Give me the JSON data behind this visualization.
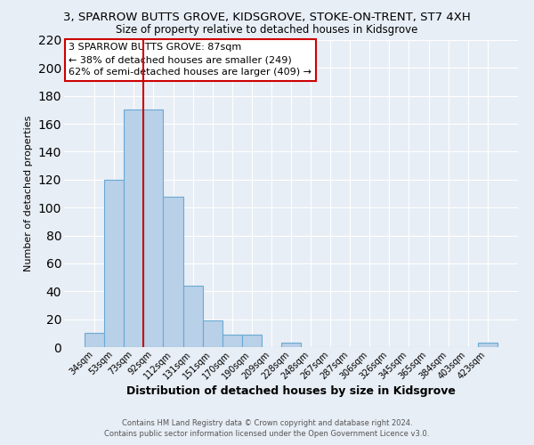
{
  "title": "3, SPARROW BUTTS GROVE, KIDSGROVE, STOKE-ON-TRENT, ST7 4XH",
  "subtitle": "Size of property relative to detached houses in Kidsgrove",
  "xlabel": "Distribution of detached houses by size in Kidsgrove",
  "ylabel": "Number of detached properties",
  "bar_labels": [
    "34sqm",
    "53sqm",
    "73sqm",
    "92sqm",
    "112sqm",
    "131sqm",
    "151sqm",
    "170sqm",
    "190sqm",
    "209sqm",
    "228sqm",
    "248sqm",
    "267sqm",
    "287sqm",
    "306sqm",
    "326sqm",
    "345sqm",
    "365sqm",
    "384sqm",
    "403sqm",
    "423sqm"
  ],
  "bar_values": [
    10,
    120,
    170,
    170,
    108,
    44,
    19,
    9,
    9,
    0,
    3,
    0,
    0,
    0,
    0,
    0,
    0,
    0,
    0,
    0,
    3
  ],
  "bar_color": "#b8d0e8",
  "bar_edge_color": "#6aaad4",
  "background_color": "#e8eef5",
  "grid_color": "#ffffff",
  "red_line_x": 2.5,
  "ylim": [
    0,
    220
  ],
  "yticks": [
    0,
    20,
    40,
    60,
    80,
    100,
    120,
    140,
    160,
    180,
    200,
    220
  ],
  "annotation_title": "3 SPARROW BUTTS GROVE: 87sqm",
  "annotation_line1": "← 38% of detached houses are smaller (249)",
  "annotation_line2": "62% of semi-detached houses are larger (409) →",
  "annotation_box_color": "#ffffff",
  "annotation_box_edge": "#cc0000",
  "footer_line1": "Contains HM Land Registry data © Crown copyright and database right 2024.",
  "footer_line2": "Contains public sector information licensed under the Open Government Licence v3.0."
}
